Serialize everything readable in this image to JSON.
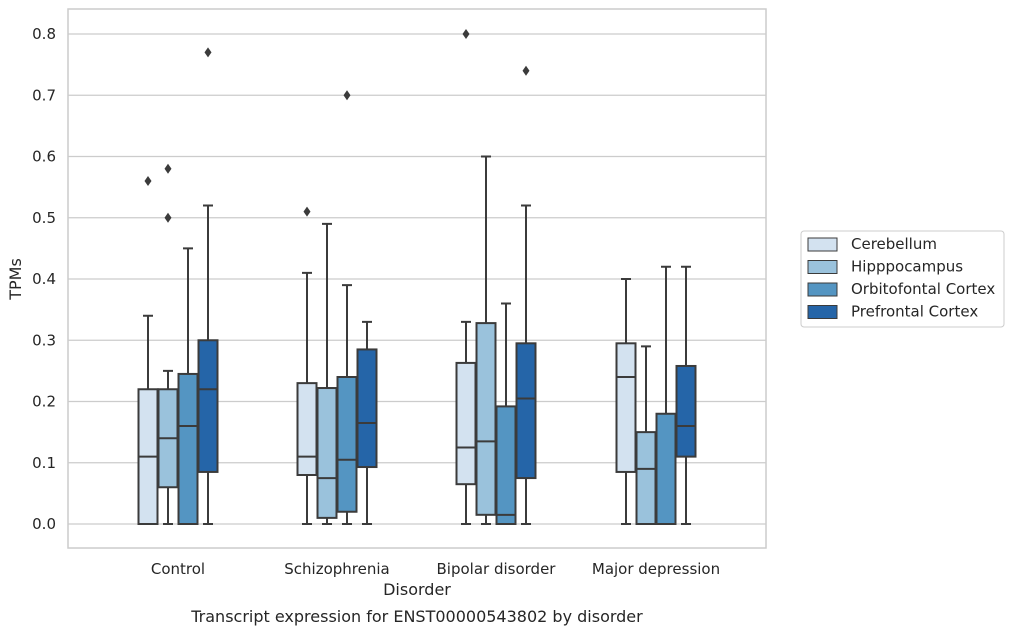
{
  "chart_data": {
    "type": "box",
    "title": "",
    "caption": "Transcript expression for ENST00000543802 by disorder",
    "xlabel": "Disorder",
    "ylabel": "TPMs",
    "ylim": [
      -0.04,
      0.84
    ],
    "yticks": [
      0.0,
      0.1,
      0.2,
      0.3,
      0.4,
      0.5,
      0.6,
      0.7,
      0.8
    ],
    "ytick_labels": [
      "0.0",
      "0.1",
      "0.2",
      "0.3",
      "0.4",
      "0.5",
      "0.6",
      "0.7",
      "0.8"
    ],
    "categories": [
      "Control",
      "Schizophrenia",
      "Bipolar disorder",
      "Major depression"
    ],
    "grid": true,
    "legend_position": "right",
    "series": [
      {
        "name": "Cerebellum",
        "color": "#d3e2f0",
        "boxes": [
          {
            "whisker_low": 0.0,
            "q1": 0.0,
            "median": 0.11,
            "q3": 0.22,
            "whisker_high": 0.34,
            "outliers": [
              0.56
            ]
          },
          {
            "whisker_low": 0.0,
            "q1": 0.08,
            "median": 0.11,
            "q3": 0.23,
            "whisker_high": 0.41,
            "outliers": [
              0.51
            ]
          },
          {
            "whisker_low": 0.0,
            "q1": 0.065,
            "median": 0.125,
            "q3": 0.263,
            "whisker_high": 0.33,
            "outliers": [
              0.8
            ]
          },
          {
            "whisker_low": 0.0,
            "q1": 0.085,
            "median": 0.24,
            "q3": 0.295,
            "whisker_high": 0.4,
            "outliers": []
          }
        ]
      },
      {
        "name": "Hipppocampus",
        "color": "#9ac2dc",
        "boxes": [
          {
            "whisker_low": 0.0,
            "q1": 0.06,
            "median": 0.14,
            "q3": 0.22,
            "whisker_high": 0.25,
            "outliers": [
              0.5,
              0.58
            ]
          },
          {
            "whisker_low": 0.0,
            "q1": 0.01,
            "median": 0.075,
            "q3": 0.222,
            "whisker_high": 0.49,
            "outliers": []
          },
          {
            "whisker_low": 0.0,
            "q1": 0.015,
            "median": 0.135,
            "q3": 0.328,
            "whisker_high": 0.6,
            "outliers": []
          },
          {
            "whisker_low": 0.0,
            "q1": 0.0,
            "median": 0.09,
            "q3": 0.15,
            "whisker_high": 0.29,
            "outliers": []
          }
        ]
      },
      {
        "name": "Orbitofontal Cortex",
        "color": "#5495c2",
        "boxes": [
          {
            "whisker_low": 0.0,
            "q1": 0.0,
            "median": 0.16,
            "q3": 0.245,
            "whisker_high": 0.45,
            "outliers": []
          },
          {
            "whisker_low": 0.0,
            "q1": 0.02,
            "median": 0.105,
            "q3": 0.24,
            "whisker_high": 0.39,
            "outliers": [
              0.7
            ]
          },
          {
            "whisker_low": 0.0,
            "q1": 0.0,
            "median": 0.015,
            "q3": 0.192,
            "whisker_high": 0.36,
            "outliers": []
          },
          {
            "whisker_low": 0.0,
            "q1": 0.0,
            "median": 0.0,
            "q3": 0.18,
            "whisker_high": 0.42,
            "outliers": []
          }
        ]
      },
      {
        "name": "Prefrontal Cortex",
        "color": "#2565a8",
        "boxes": [
          {
            "whisker_low": 0.0,
            "q1": 0.085,
            "median": 0.22,
            "q3": 0.3,
            "whisker_high": 0.52,
            "outliers": [
              0.77
            ]
          },
          {
            "whisker_low": 0.0,
            "q1": 0.093,
            "median": 0.165,
            "q3": 0.285,
            "whisker_high": 0.33,
            "outliers": []
          },
          {
            "whisker_low": 0.0,
            "q1": 0.075,
            "median": 0.205,
            "q3": 0.295,
            "whisker_high": 0.52,
            "outliers": [
              0.74
            ]
          },
          {
            "whisker_low": 0.0,
            "q1": 0.11,
            "median": 0.16,
            "q3": 0.258,
            "whisker_high": 0.42,
            "outliers": []
          }
        ]
      }
    ]
  }
}
